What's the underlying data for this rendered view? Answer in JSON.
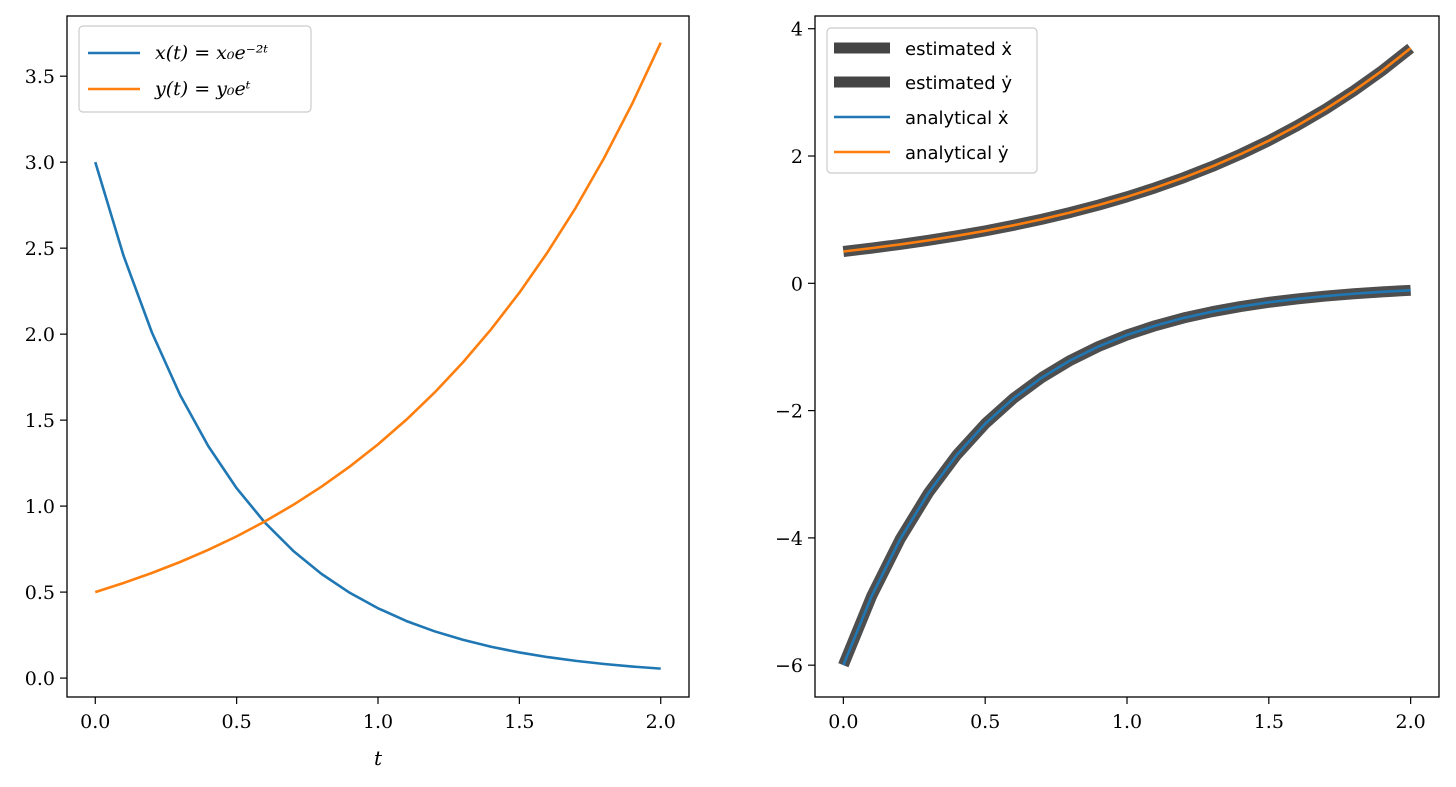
{
  "colors": {
    "blue": "#1f77b4",
    "orange": "#ff7f0e",
    "estimate": "#444444"
  },
  "chart_data": [
    {
      "type": "line",
      "title": "",
      "xlabel": "t",
      "ylabel": "",
      "xlim": [
        -0.1,
        2.1
      ],
      "ylim": [
        -0.11,
        3.85
      ],
      "xticks": [
        0.0,
        0.5,
        1.0,
        1.5,
        2.0
      ],
      "xtick_labels": [
        "0.0",
        "0.5",
        "1.0",
        "1.5",
        "2.0"
      ],
      "yticks": [
        0.0,
        0.5,
        1.0,
        1.5,
        2.0,
        2.5,
        3.0,
        3.5
      ],
      "ytick_labels": [
        "0.0",
        "0.5",
        "1.0",
        "1.5",
        "2.0",
        "2.5",
        "3.0",
        "3.5"
      ],
      "legend_position": "top-left",
      "x": [
        0.0,
        0.1,
        0.2,
        0.3,
        0.4,
        0.5,
        0.6,
        0.7,
        0.8,
        0.9,
        1.0,
        1.1,
        1.2,
        1.3,
        1.4,
        1.5,
        1.6,
        1.7,
        1.8,
        1.9,
        2.0
      ],
      "series": [
        {
          "name": "x(t) = x₀e⁻²ᵗ",
          "color": "blue",
          "values": [
            3.0,
            2.456,
            2.011,
            1.646,
            1.348,
            1.104,
            0.904,
            0.74,
            0.606,
            0.496,
            0.406,
            0.332,
            0.272,
            0.223,
            0.182,
            0.149,
            0.122,
            0.1,
            0.082,
            0.067,
            0.055
          ]
        },
        {
          "name": "y(t) = y₀eᵗ",
          "color": "orange",
          "values": [
            0.5,
            0.553,
            0.611,
            0.675,
            0.746,
            0.824,
            0.911,
            1.007,
            1.113,
            1.23,
            1.359,
            1.502,
            1.66,
            1.835,
            2.028,
            2.241,
            2.477,
            2.737,
            3.025,
            3.343,
            3.695
          ]
        }
      ]
    },
    {
      "type": "line",
      "title": "",
      "xlabel": "",
      "ylabel": "",
      "xlim": [
        -0.1,
        2.1
      ],
      "ylim": [
        -6.5,
        4.2
      ],
      "xticks": [
        0.0,
        0.5,
        1.0,
        1.5,
        2.0
      ],
      "xtick_labels": [
        "0.0",
        "0.5",
        "1.0",
        "1.5",
        "2.0"
      ],
      "yticks": [
        4,
        2,
        0,
        -2,
        -4,
        -6
      ],
      "ytick_labels": [
        "4",
        "2",
        "0",
        "−2",
        "−4",
        "−6"
      ],
      "legend_position": "top-left",
      "x": [
        0.0,
        0.1,
        0.2,
        0.3,
        0.4,
        0.5,
        0.6,
        0.7,
        0.8,
        0.9,
        1.0,
        1.1,
        1.2,
        1.3,
        1.4,
        1.5,
        1.6,
        1.7,
        1.8,
        1.9,
        2.0
      ],
      "series": [
        {
          "name": "estimated ẋ",
          "color": "estimate",
          "style": "thick",
          "values": [
            -6.0,
            -4.912,
            -4.022,
            -3.293,
            -2.696,
            -2.207,
            -1.807,
            -1.48,
            -1.211,
            -0.992,
            -0.812,
            -0.665,
            -0.544,
            -0.446,
            -0.365,
            -0.299,
            -0.245,
            -0.2,
            -0.164,
            -0.134,
            -0.11
          ]
        },
        {
          "name": "estimated ẏ",
          "color": "estimate",
          "style": "thick",
          "values": [
            0.5,
            0.553,
            0.611,
            0.675,
            0.746,
            0.824,
            0.911,
            1.007,
            1.113,
            1.23,
            1.359,
            1.502,
            1.66,
            1.835,
            2.028,
            2.241,
            2.477,
            2.737,
            3.025,
            3.343,
            3.695
          ]
        },
        {
          "name": "analytical ẋ",
          "color": "blue",
          "style": "thin",
          "values": [
            -6.0,
            -4.912,
            -4.022,
            -3.293,
            -2.696,
            -2.207,
            -1.807,
            -1.48,
            -1.211,
            -0.992,
            -0.812,
            -0.665,
            -0.544,
            -0.446,
            -0.365,
            -0.299,
            -0.245,
            -0.2,
            -0.164,
            -0.134,
            -0.11
          ]
        },
        {
          "name": "analytical ẏ",
          "color": "orange",
          "style": "thin",
          "values": [
            0.5,
            0.553,
            0.611,
            0.675,
            0.746,
            0.824,
            0.911,
            1.007,
            1.113,
            1.23,
            1.359,
            1.502,
            1.66,
            1.835,
            2.028,
            2.241,
            2.477,
            2.737,
            3.025,
            3.343,
            3.695
          ]
        }
      ]
    }
  ]
}
